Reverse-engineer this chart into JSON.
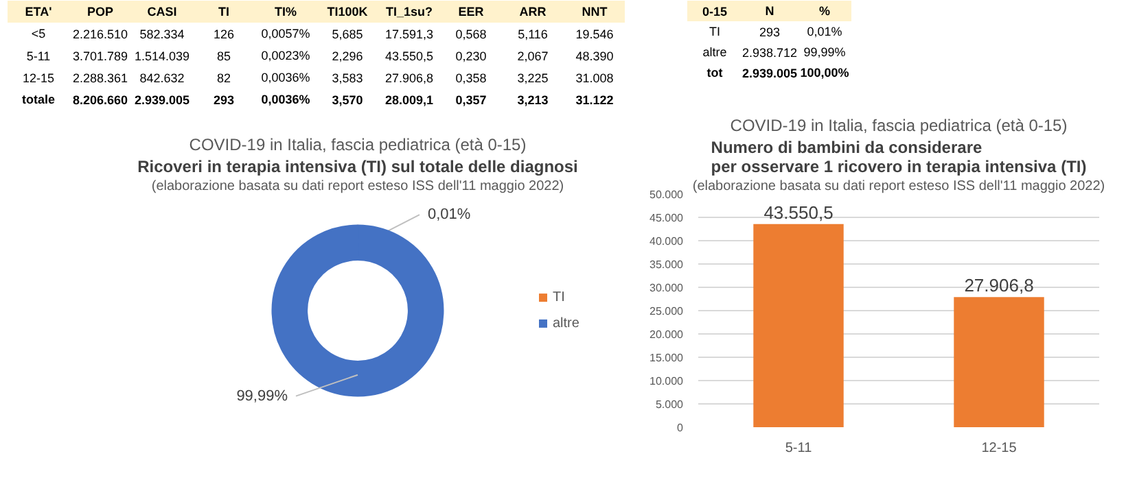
{
  "chart_data": [
    {
      "type": "other",
      "categories": [
        "ETA'",
        "POP",
        "CASI",
        "TI",
        "TI%",
        "TI100K",
        "TI_1su?",
        "EER",
        "ARR",
        "NNT"
      ],
      "annotations": [
        "<5",
        "2.216.510",
        "582.334",
        "126",
        "0,0057%",
        "5,685",
        "17.591,3",
        "0,568",
        "5,116",
        "19.546",
        "5-11",
        "3.701.789",
        "1.514.039",
        "85",
        "0,0023%",
        "2,296",
        "43.550,5",
        "0,230",
        "2,067",
        "48.390",
        "12-15",
        "2.288.361",
        "842.632",
        "82",
        "0,0036%",
        "3,583",
        "27.906,8",
        "0,358",
        "3,225",
        "31.008",
        "totale",
        "8.206.660",
        "2.939.005",
        "293",
        "0,0036%",
        "3,570",
        "28.009,1",
        "0,357",
        "3,213",
        "31.122"
      ]
    },
    {
      "type": "other",
      "categories": [
        "0-15",
        "N",
        "%"
      ],
      "annotations": [
        "TI",
        "293",
        "0,01%",
        "altre",
        "2.938.712",
        "99,99%",
        "tot",
        "2.939.005",
        "100,00%"
      ]
    },
    {
      "type": "donut",
      "title": "COVID-19 in Italia, fascia pediatrica (età 0-15)",
      "subtitle": "Ricoveri in terapia intensiva (TI) sul totale delle diagnosi",
      "annotations": [
        "(elaborazione basata su dati report esteso ISS dell'11 maggio 2022)"
      ],
      "categories": [
        "TI",
        "altre"
      ],
      "values": [
        0.01,
        99.99
      ],
      "colors": [
        "#ed7d31",
        "#4472c4"
      ],
      "value_labels": [
        "0,01%",
        "99,99%"
      ],
      "legend": "right"
    },
    {
      "type": "bar",
      "title": "COVID-19 in Italia, fascia pediatrica (età 0-15)",
      "subtitle": "Numero di bambini da considerare\nper osservare 1 ricovero in terapia intensiva (TI)",
      "annotations": [
        "(elaborazione basata su dati report esteso ISS dell'11 maggio 2022)"
      ],
      "categories": [
        "5-11",
        "12-15"
      ],
      "values": [
        43550.5,
        27906.8
      ],
      "color": "#ed7d31",
      "value_labels": [
        "43.550,5",
        "27.906,8"
      ],
      "ylim": [
        0,
        50000
      ],
      "yticks": [
        0,
        {
          "value": 5000,
          "label": "5.000"
        },
        {
          "value": 10000,
          "label": "10.000"
        },
        {
          "value": 15000,
          "label": "15.000"
        },
        {
          "value": 20000,
          "label": "20.000"
        },
        {
          "value": 25000,
          "label": "25.000"
        },
        {
          "value": 30000,
          "label": "30.000"
        },
        {
          "value": 35000,
          "label": "35.000"
        },
        {
          "value": 40000,
          "label": "40.000"
        },
        {
          "value": 45000,
          "label": "45.000"
        },
        {
          "value": 50000,
          "label": "50.000"
        }
      ],
      "grid": "y"
    }
  ]
}
